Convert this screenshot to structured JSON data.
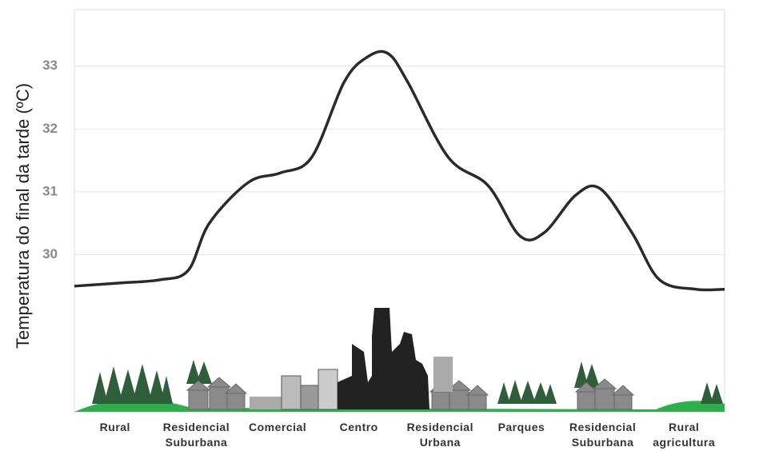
{
  "chart_data": {
    "type": "line",
    "y_label": "Temperatura do final da tarde (ºC)",
    "categories": [
      "Rural",
      "Residencial Suburbana",
      "Comercial",
      "Centro",
      "Residencial Urbana",
      "Parques",
      "Residencial Suburbana",
      "Rural agricultura"
    ],
    "xlim": [
      0,
      8
    ],
    "ylim": [
      27.5,
      33.9
    ],
    "yticks": [
      30,
      31,
      32,
      33
    ],
    "grid": true,
    "series": [
      {
        "color": "#2a2a2a",
        "x": [
          0,
          0.56,
          1.05,
          1.4,
          1.66,
          2.14,
          2.53,
          2.92,
          3.32,
          3.61,
          3.86,
          4.1,
          4.6,
          5.09,
          5.48,
          5.78,
          6.17,
          6.47,
          6.86,
          7.2,
          7.65,
          8
        ],
        "values": [
          29.5,
          29.55,
          29.6,
          29.75,
          30.5,
          31.15,
          31.3,
          31.55,
          32.75,
          33.15,
          33.2,
          32.75,
          31.55,
          31.1,
          30.3,
          30.35,
          30.95,
          31.05,
          30.35,
          29.6,
          29.45,
          29.45
        ]
      }
    ]
  }
}
